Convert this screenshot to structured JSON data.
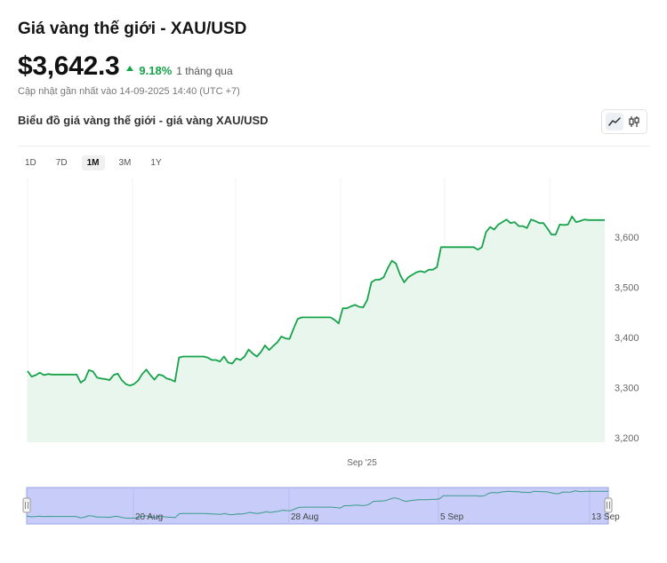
{
  "header": {
    "title": "Giá vàng thế giới - XAU/USD",
    "price": "$3,642.3",
    "change_pct": "9.18%",
    "change_period": "1 tháng qua",
    "updated": "Cập nhật gần nhất vào 14-09-2025 14:40 (UTC +7)"
  },
  "chart_heading": "Biểu đồ giá vàng thế giới - giá vàng XAU/USD",
  "toggles": [
    {
      "name": "line-chart-icon",
      "active": true
    },
    {
      "name": "candlestick-icon",
      "active": false
    }
  ],
  "ranges": [
    {
      "label": "1D",
      "active": false
    },
    {
      "label": "7D",
      "active": false
    },
    {
      "label": "1M",
      "active": true
    },
    {
      "label": "3M",
      "active": false
    },
    {
      "label": "1Y",
      "active": false
    }
  ],
  "colors": {
    "up": "#16a34a",
    "line": "#16a34a",
    "area": "#e8f6ee",
    "navigator_fill": "#c7cdf8",
    "navigator_line": "#3a9a8a"
  },
  "chart_data": {
    "type": "area",
    "title": "",
    "xlabel": "",
    "ylabel": "",
    "ylim": [
      3200,
      3650
    ],
    "yticks": [
      "3,200",
      "3,300",
      "3,400",
      "3,500",
      "3,600"
    ],
    "x_ticks": [
      "Sep '25"
    ],
    "navigator_ticks": [
      "20 Aug",
      "28 Aug",
      "5 Sep",
      "13 Sep"
    ],
    "series": [
      {
        "values": [
          3333,
          3322,
          3325,
          3330,
          3325,
          3327,
          3326,
          3326,
          3326,
          3326,
          3326,
          3326,
          3326,
          3310,
          3316,
          3335,
          3332,
          3320,
          3318,
          3317,
          3315,
          3325,
          3328,
          3315,
          3307,
          3304,
          3307,
          3314,
          3327,
          3336,
          3325,
          3316,
          3326,
          3324,
          3318,
          3316,
          3312,
          3360,
          3362,
          3362,
          3362,
          3362,
          3362,
          3362,
          3360,
          3355,
          3355,
          3352,
          3362,
          3350,
          3348,
          3358,
          3355,
          3362,
          3376,
          3368,
          3362,
          3371,
          3384,
          3375,
          3383,
          3390,
          3402,
          3398,
          3397,
          3418,
          3437,
          3440,
          3440,
          3440,
          3440,
          3440,
          3440,
          3440,
          3440,
          3435,
          3428,
          3458,
          3458,
          3462,
          3465,
          3461,
          3460,
          3475,
          3510,
          3515,
          3515,
          3520,
          3538,
          3553,
          3547,
          3525,
          3510,
          3520,
          3525,
          3530,
          3532,
          3530,
          3535,
          3535,
          3540,
          3580,
          3580,
          3580,
          3580,
          3580,
          3580,
          3580,
          3580,
          3580,
          3575,
          3580,
          3610,
          3620,
          3615,
          3625,
          3630,
          3635,
          3628,
          3630,
          3622,
          3622,
          3618,
          3635,
          3632,
          3628,
          3628,
          3617,
          3605,
          3605,
          3625,
          3624,
          3625,
          3641,
          3630,
          3632,
          3635,
          3634,
          3634,
          3634,
          3634,
          3634
        ]
      }
    ]
  }
}
